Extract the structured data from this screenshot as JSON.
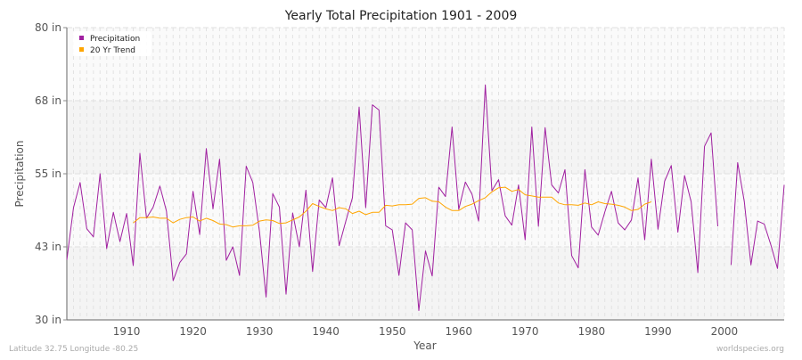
{
  "chart_data": {
    "type": "line",
    "title": "Yearly Total Precipitation 1901 - 2009",
    "xlabel": "Year",
    "ylabel": "Precipitation",
    "xlim": [
      1901,
      2009
    ],
    "ylim": [
      30,
      80
    ],
    "x_ticks": [
      1910,
      1920,
      1930,
      1940,
      1950,
      1960,
      1970,
      1980,
      1990,
      2000
    ],
    "y_ticks": [
      {
        "value": 80,
        "label": "80 in"
      },
      {
        "value": 67.5,
        "label": "68 in"
      },
      {
        "value": 55,
        "label": "55 in"
      },
      {
        "value": 42.5,
        "label": "43 in"
      },
      {
        "value": 30,
        "label": "30 in"
      }
    ],
    "grid": true,
    "legend_position": "top-left",
    "series": [
      {
        "name": "Precipitation",
        "color": "#a020a0",
        "x_start": 1901,
        "values": [
          40.3,
          49.2,
          53.5,
          45.6,
          44.2,
          55.0,
          42.2,
          48.4,
          43.4,
          48.2,
          39.3,
          58.5,
          47.4,
          49.3,
          52.9,
          48.6,
          36.7,
          39.8,
          41.3,
          52.0,
          44.6,
          59.3,
          49.0,
          57.5,
          40.2,
          42.5,
          37.6,
          56.3,
          53.5,
          45.1,
          33.9,
          51.6,
          49.3,
          34.4,
          48.3,
          42.5,
          52.2,
          38.3,
          50.5,
          49.2,
          54.3,
          42.7,
          46.9,
          50.9,
          66.4,
          49.2,
          66.8,
          65.9,
          46.1,
          45.4,
          37.6,
          46.6,
          45.4,
          31.6,
          41.8,
          37.5,
          52.7,
          51.1,
          63.0,
          48.9,
          53.6,
          51.5,
          46.9,
          70.2,
          52.1,
          54.0,
          47.8,
          46.2,
          53.1,
          43.7,
          63.0,
          46.0,
          62.9,
          53.1,
          51.7,
          55.7,
          41.0,
          38.9,
          55.7,
          45.9,
          44.5,
          48.5,
          52.0,
          46.6,
          45.4,
          47.1,
          54.3,
          43.7,
          57.5,
          45.5,
          53.7,
          56.4,
          45.0,
          54.7,
          50.2,
          38.1,
          59.7,
          62.0,
          46.0,
          null,
          39.4,
          56.9,
          50.2,
          39.4,
          46.9,
          46.4,
          42.8,
          38.8,
          53.1
        ]
      },
      {
        "name": "20 Yr Trend",
        "color": "#ffa500",
        "x_start": 1911,
        "values": [
          46.6,
          47.5,
          47.5,
          47.6,
          47.4,
          47.4,
          46.6,
          47.2,
          47.5,
          47.6,
          46.9,
          47.4,
          47.0,
          46.4,
          46.3,
          45.9,
          46.1,
          46.1,
          46.2,
          46.9,
          47.1,
          47.0,
          46.5,
          46.6,
          47.1,
          47.6,
          48.6,
          49.9,
          49.4,
          49.0,
          48.7,
          49.2,
          49.0,
          48.2,
          48.6,
          48.0,
          48.4,
          48.4,
          49.6,
          49.5,
          49.7,
          49.7,
          49.8,
          50.8,
          50.9,
          50.3,
          50.2,
          49.3,
          48.7,
          48.7,
          49.4,
          49.8,
          50.4,
          50.9,
          51.9,
          52.6,
          52.7,
          52.0,
          52.3,
          51.4,
          51.2,
          51.0,
          51.0,
          51.0,
          50.0,
          49.7,
          49.7,
          49.6,
          50.0,
          49.7,
          50.2,
          49.9,
          49.8,
          49.6,
          49.3,
          48.7,
          48.9,
          49.8,
          50.2
        ]
      }
    ]
  },
  "footer": {
    "location": "Latitude 32.75 Longitude -80.25",
    "site": "worldspecies.org"
  }
}
